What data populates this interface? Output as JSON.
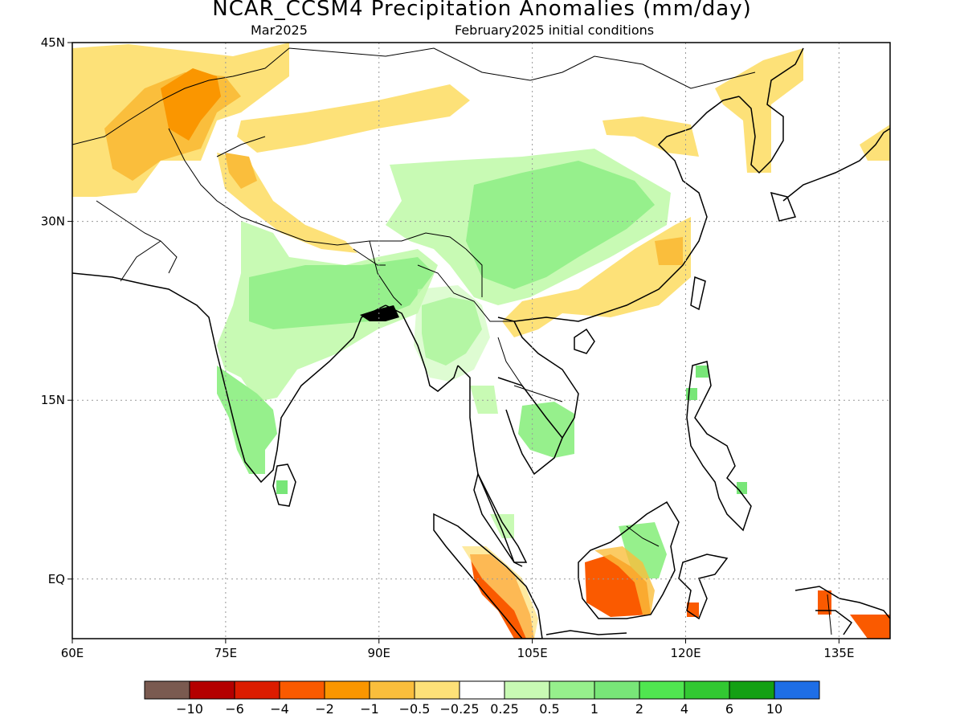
{
  "title": "NCAR_CCSM4 Precipitation Anomalies (mm/day)",
  "subtitle_left": "Mar2025",
  "subtitle_right": "February2025 initial conditions",
  "axes": {
    "lon_ticks": [
      "60E",
      "75E",
      "90E",
      "105E",
      "120E",
      "135E"
    ],
    "lat_ticks": [
      "45N",
      "30N",
      "15N",
      "EQ"
    ],
    "lon_range": [
      60,
      140
    ],
    "lat_range": [
      -5,
      45
    ],
    "grid": "dotted"
  },
  "colorbar": {
    "colors": [
      "#7a5a50",
      "#b40000",
      "#dc1c00",
      "#fa5a00",
      "#fa9600",
      "#fabe3c",
      "#fde178",
      "#ffffff",
      "#c8fab4",
      "#96f08c",
      "#78e678",
      "#50e650",
      "#32c832",
      "#14a014",
      "#1e6ee6"
    ],
    "labels": [
      "-10",
      "-6",
      "-4",
      "-2",
      "-1",
      "-0.5",
      "-0.25",
      "0.25",
      "0.5",
      "1",
      "2",
      "4",
      "6",
      "10"
    ]
  },
  "regions": [
    {
      "category": "-0.25",
      "color": "#fde178",
      "area": "Central Asia / NW China"
    },
    {
      "category": "-0.5",
      "color": "#fabe3c",
      "area": "Afghanistan / Pakistan"
    },
    {
      "category": "-1",
      "color": "#fa9600",
      "area": "Karakoram"
    },
    {
      "category": "-0.25",
      "color": "#fde178",
      "area": "Southeast China"
    },
    {
      "category": "-0.25",
      "color": "#fde178",
      "area": "Korea"
    },
    {
      "category": "0.25",
      "color": "#c8fab4",
      "area": "Central China"
    },
    {
      "category": "0.5",
      "color": "#96f08c",
      "area": "Central / South China"
    },
    {
      "category": "0.25",
      "color": "#c8fab4",
      "area": "India"
    },
    {
      "category": "0.5",
      "color": "#96f08c",
      "area": "Northeast India / Bangladesh"
    },
    {
      "category": "0.5",
      "color": "#96f08c",
      "area": "Myanmar"
    },
    {
      "category": "0.5",
      "color": "#96f08c",
      "area": "Southern India"
    },
    {
      "category": "0.5",
      "color": "#96f08c",
      "area": "Cambodia / Vietnam"
    },
    {
      "category": "-2",
      "color": "#fa5a00",
      "area": "Borneo"
    },
    {
      "category": "-2",
      "color": "#fa5a00",
      "area": "Sumatra"
    },
    {
      "category": "0.5",
      "color": "#96f08c",
      "area": "North Borneo"
    },
    {
      "category": "-2",
      "color": "#fa5a00",
      "area": "New Guinea"
    }
  ]
}
